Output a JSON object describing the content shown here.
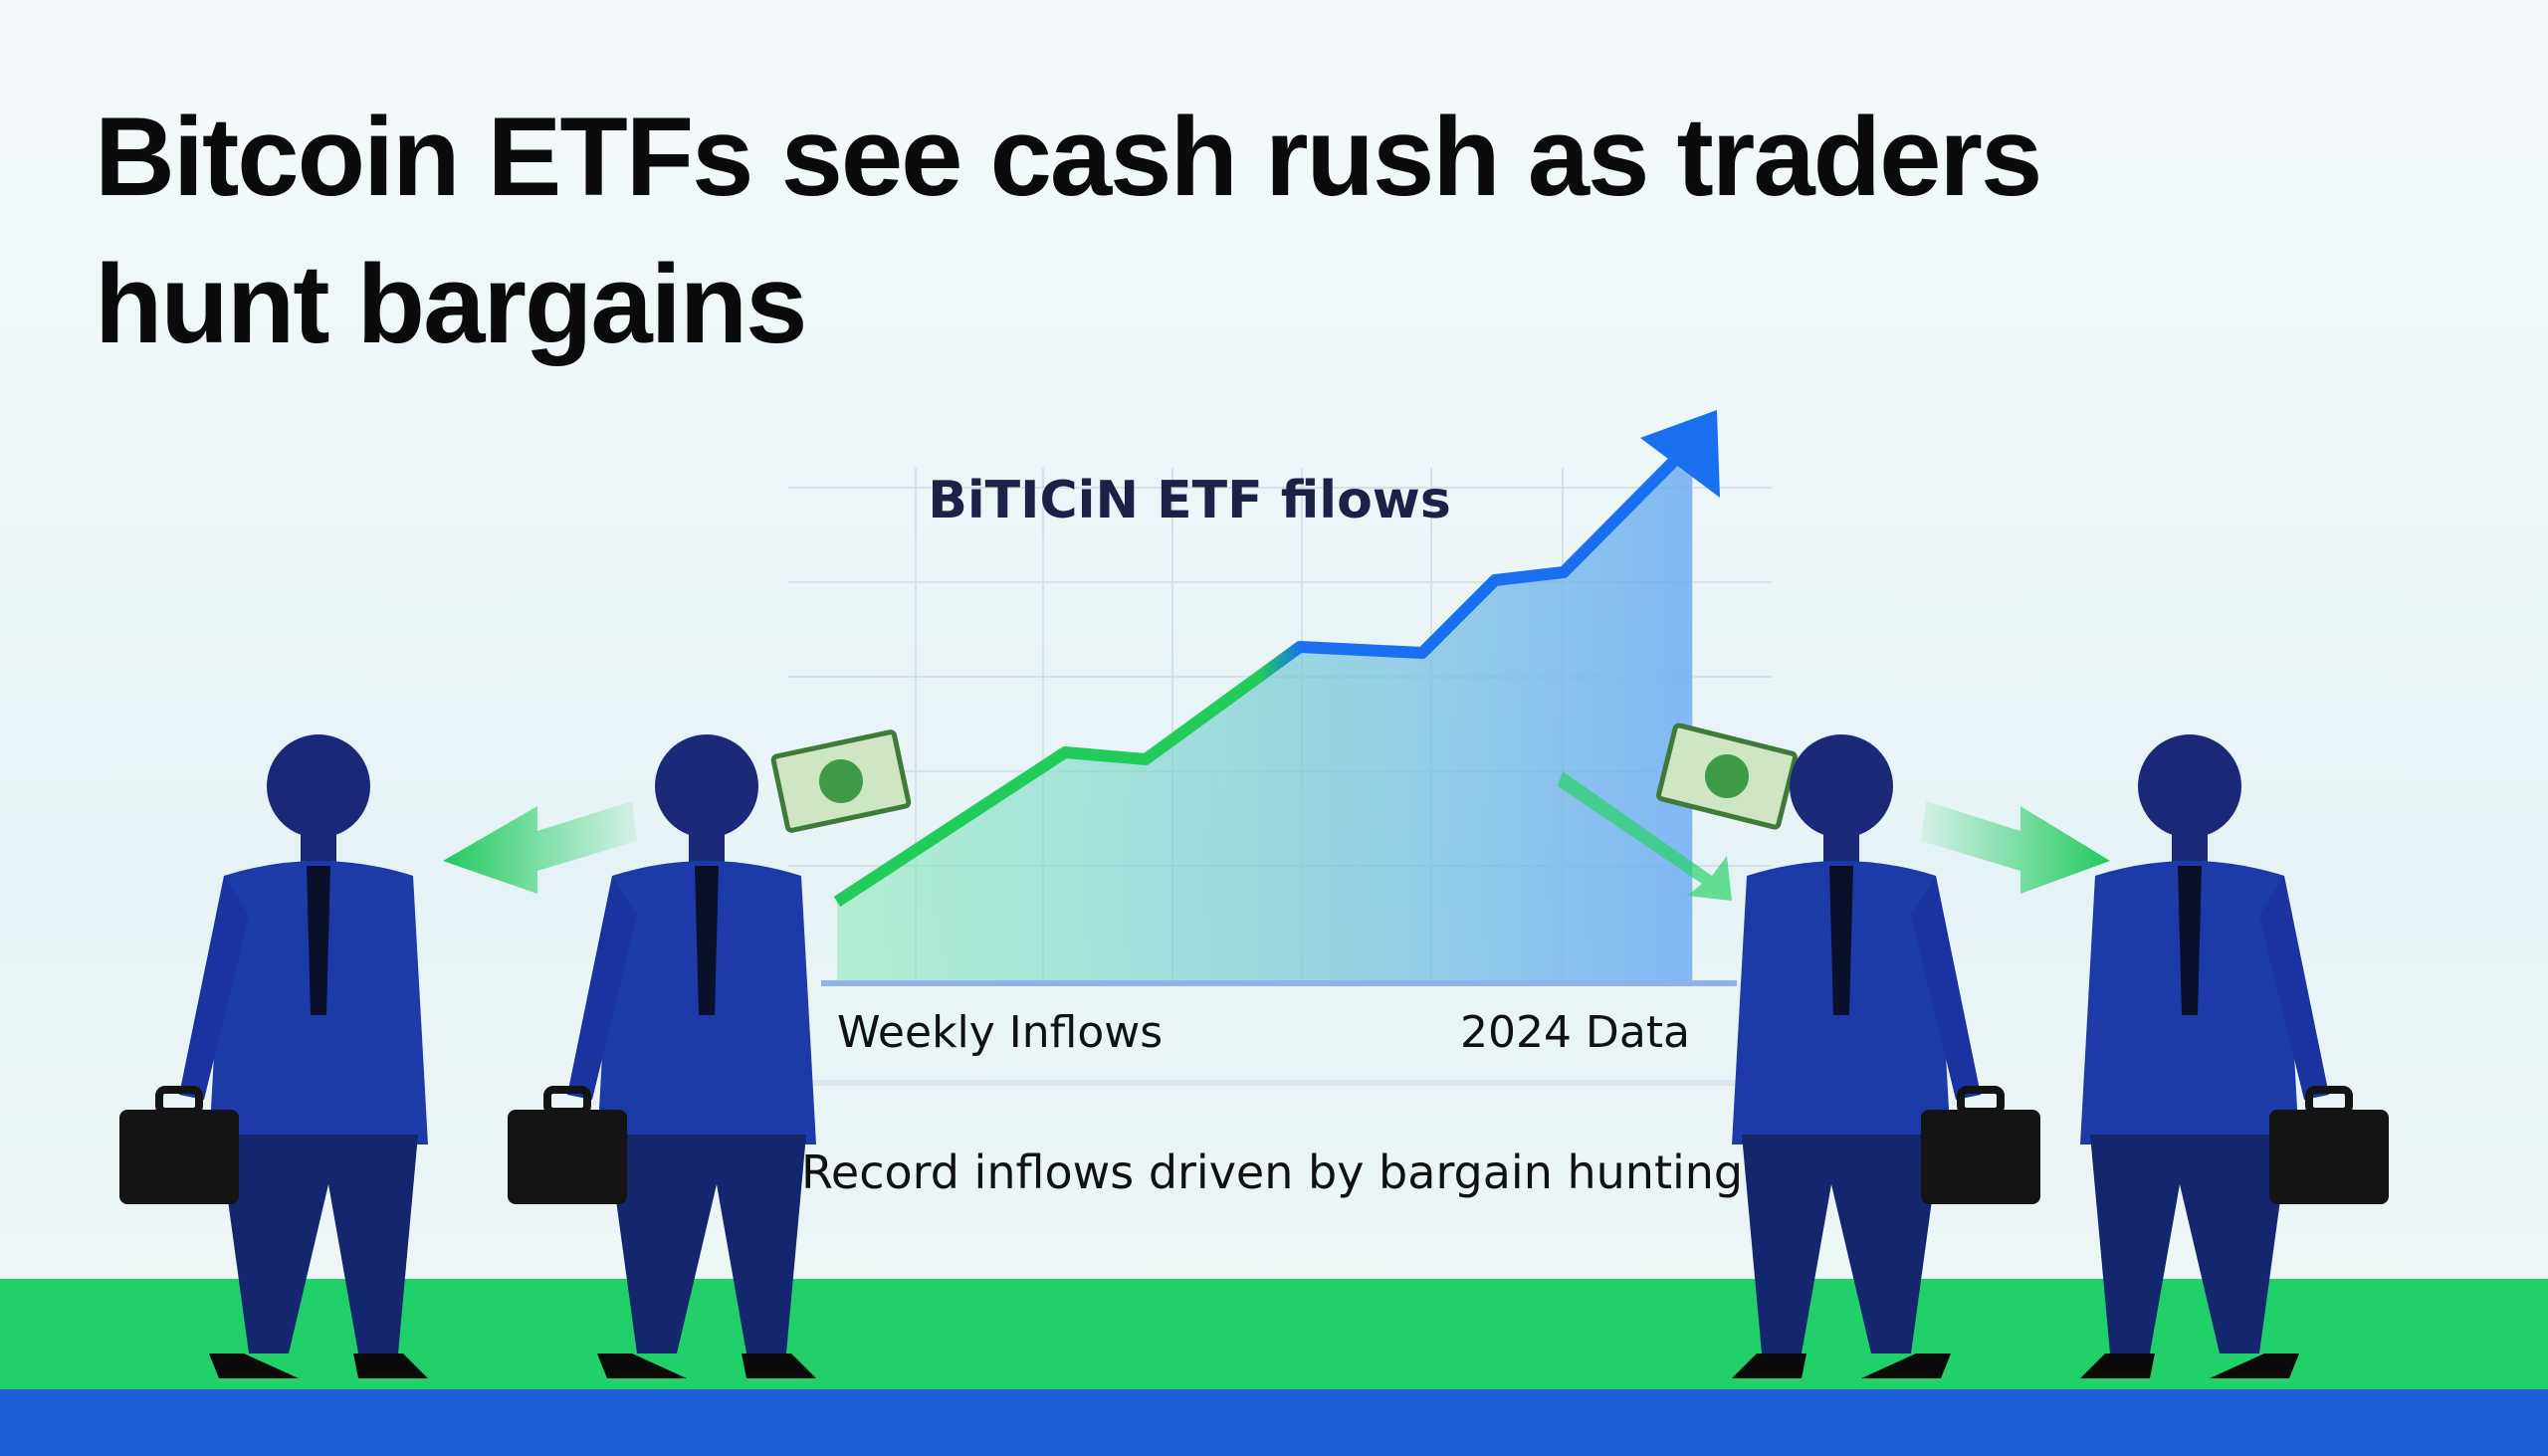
{
  "headline": {
    "line1": "Bitcoin ETFs see cash rush as traders",
    "line2": "hunt bargains"
  },
  "chart": {
    "title": "BiTICiN ETF filows",
    "left_label": "Weekly Inflows",
    "right_label": "2024 Data"
  },
  "caption": "Record inflows driven by bargain hunting"
}
